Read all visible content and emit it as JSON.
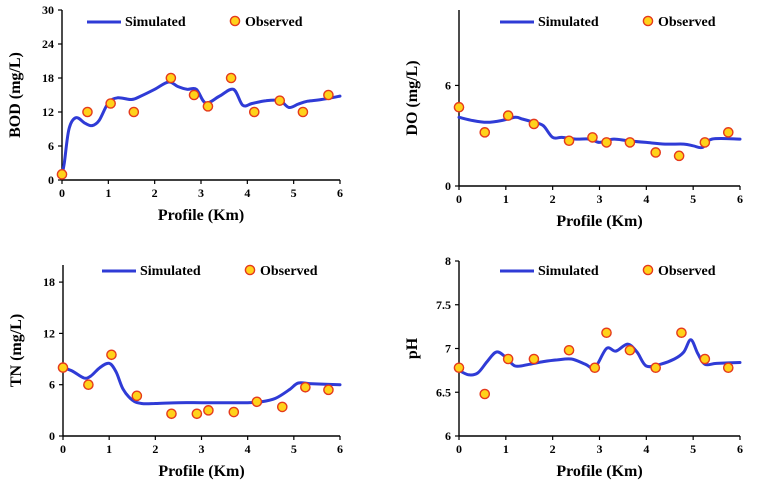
{
  "colors": {
    "simulated": "#2F3BD6",
    "observed_fill": "#FFD21A",
    "observed_edge": "#E53A1C"
  },
  "chart_data": [
    {
      "type": "line",
      "ylabel": "BOD (mg/L)",
      "xlabel": "Profile (Km)",
      "xlim": [
        0,
        6
      ],
      "ylim": [
        0,
        30
      ],
      "xticks": [
        "0",
        "1",
        "2",
        "3",
        "4",
        "5",
        "6"
      ],
      "yticks": [
        "0",
        "6",
        "12",
        "18",
        "24",
        "30"
      ],
      "legend": {
        "simulated": "Simulated",
        "observed": "Observed"
      },
      "simulated": {
        "x": [
          0,
          0.05,
          0.15,
          0.3,
          0.5,
          0.65,
          0.8,
          1.0,
          1.2,
          1.5,
          1.7,
          2.0,
          2.3,
          2.5,
          2.7,
          2.9,
          3.1,
          3.4,
          3.7,
          3.9,
          4.1,
          4.4,
          4.7,
          4.9,
          5.1,
          5.3,
          5.6,
          6.0
        ],
        "y": [
          1,
          3,
          9,
          11,
          10,
          9.6,
          10.5,
          13.6,
          14.5,
          14.2,
          14.8,
          16,
          17.3,
          16.5,
          16,
          16,
          13.6,
          14.8,
          16,
          13.2,
          13.5,
          14,
          14,
          12.8,
          13.4,
          13.9,
          14.2,
          14.8
        ]
      },
      "observed": {
        "x": [
          0,
          0.55,
          1.05,
          1.55,
          2.35,
          2.85,
          3.15,
          3.65,
          4.15,
          4.7,
          5.2,
          5.75
        ],
        "y": [
          1,
          12,
          13.5,
          12,
          18,
          15,
          13,
          18,
          12,
          14,
          12,
          15
        ]
      }
    },
    {
      "type": "line",
      "ylabel": "DO (mg/L)",
      "xlabel": "Profile (Km)",
      "xlim": [
        0,
        6
      ],
      "ylim": [
        0,
        10.5
      ],
      "xticks": [
        "0",
        "1",
        "2",
        "3",
        "4",
        "5",
        "6"
      ],
      "ytick_values": [
        0,
        6
      ],
      "yticks": [
        "0",
        "6"
      ],
      "legend": {
        "simulated": "Simulated",
        "observed": "Observed"
      },
      "simulated": {
        "x": [
          0,
          0.3,
          0.6,
          0.9,
          1.2,
          1.35,
          1.6,
          1.8,
          2.0,
          2.2,
          2.5,
          2.8,
          3.0,
          3.3,
          3.6,
          4.0,
          4.4,
          4.8,
          5.0,
          5.2,
          5.4,
          6.0
        ],
        "y": [
          4.1,
          3.9,
          3.8,
          3.9,
          4.1,
          4.0,
          3.8,
          3.6,
          2.9,
          2.9,
          2.8,
          2.8,
          2.6,
          2.8,
          2.7,
          2.6,
          2.5,
          2.5,
          2.4,
          2.3,
          2.8,
          2.8
        ]
      },
      "observed": {
        "x": [
          0,
          0.55,
          1.05,
          1.6,
          2.35,
          2.85,
          3.15,
          3.65,
          4.2,
          4.7,
          5.25,
          5.75
        ],
        "y": [
          4.7,
          3.2,
          4.2,
          3.7,
          2.7,
          2.9,
          2.6,
          2.6,
          2.0,
          1.8,
          2.6,
          3.2
        ]
      }
    },
    {
      "type": "line",
      "ylabel": "TN (mg/L)",
      "xlabel": "Profile (Km)",
      "xlim": [
        0,
        6
      ],
      "ylim": [
        0,
        20
      ],
      "xticks": [
        "0",
        "1",
        "2",
        "3",
        "4",
        "5",
        "6"
      ],
      "ytick_values": [
        0,
        6,
        12,
        18
      ],
      "yticks": [
        "0",
        "6",
        "12",
        "18"
      ],
      "legend": {
        "simulated": "Simulated",
        "observed": "Observed"
      },
      "simulated": {
        "x": [
          0,
          0.2,
          0.45,
          0.6,
          0.8,
          1.0,
          1.15,
          1.3,
          1.5,
          1.7,
          2.0,
          2.5,
          3.0,
          3.5,
          4.0,
          4.3,
          4.6,
          4.9,
          5.1,
          5.4,
          6.0
        ],
        "y": [
          8,
          7.6,
          6.8,
          7.0,
          8.0,
          8.5,
          7.5,
          5.5,
          4.2,
          3.8,
          3.8,
          3.9,
          3.9,
          3.9,
          3.9,
          4.0,
          4.4,
          5.4,
          6.2,
          6.1,
          6.0
        ]
      },
      "observed": {
        "x": [
          0,
          0.55,
          1.05,
          1.6,
          2.35,
          2.9,
          3.15,
          3.7,
          4.2,
          4.75,
          5.25,
          5.75
        ],
        "y": [
          8,
          6,
          9.5,
          4.7,
          2.6,
          2.6,
          3.0,
          2.8,
          4.0,
          3.4,
          5.7,
          5.4
        ]
      }
    },
    {
      "type": "line",
      "ylabel": "pH",
      "xlabel": "Profile (Km)",
      "xlim": [
        0,
        6
      ],
      "ylim": [
        6,
        8
      ],
      "xticks": [
        "0",
        "1",
        "2",
        "3",
        "4",
        "5",
        "6"
      ],
      "ytick_values": [
        6,
        6.5,
        7,
        7.5,
        8
      ],
      "yticks": [
        "6",
        "6.5",
        "7",
        "7.5",
        "8"
      ],
      "legend": {
        "simulated": "Simulated",
        "observed": "Observed"
      },
      "simulated": {
        "x": [
          0,
          0.2,
          0.4,
          0.6,
          0.8,
          1.0,
          1.2,
          1.5,
          1.8,
          2.1,
          2.4,
          2.7,
          2.9,
          3.15,
          3.35,
          3.6,
          3.8,
          4.0,
          4.3,
          4.6,
          4.8,
          4.95,
          5.1,
          5.25,
          5.5,
          6.0
        ],
        "y": [
          6.75,
          6.7,
          6.72,
          6.85,
          6.96,
          6.9,
          6.8,
          6.82,
          6.85,
          6.87,
          6.88,
          6.82,
          6.78,
          7.0,
          6.97,
          7.05,
          6.96,
          6.8,
          6.82,
          6.88,
          6.96,
          7.1,
          6.94,
          6.82,
          6.83,
          6.84
        ]
      },
      "observed": {
        "x": [
          0,
          0.55,
          1.05,
          1.6,
          2.35,
          2.9,
          3.15,
          3.65,
          4.2,
          4.75,
          5.25,
          5.75
        ],
        "y": [
          6.78,
          6.48,
          6.88,
          6.88,
          6.98,
          6.78,
          7.18,
          6.98,
          6.78,
          7.18,
          6.88,
          6.78
        ]
      }
    }
  ]
}
